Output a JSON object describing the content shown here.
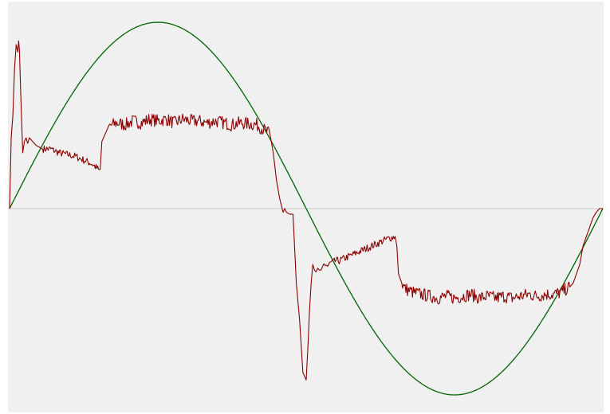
{
  "chart_data": {
    "type": "line",
    "title": "",
    "xlabel": "",
    "ylabel": "",
    "xlim": [
      0,
      360
    ],
    "ylim": [
      -1,
      1
    ],
    "grid": false,
    "zero_line": true,
    "colors": {
      "background": "#f0f0f0",
      "zero_line": "#cccccc",
      "sine_series": "#006400",
      "signal_series": "#8b0000"
    },
    "series": [
      {
        "key": "sine",
        "function": "sin",
        "amplitude": 1.0,
        "color": "#006400"
      },
      {
        "key": "signal",
        "color": "#8b0000",
        "x": [
          0,
          1,
          2,
          3,
          4,
          5,
          5.5,
          6,
          7,
          8,
          9,
          10,
          11,
          12,
          14,
          16,
          20,
          25,
          30,
          35,
          40,
          45,
          50,
          54,
          55,
          56,
          58,
          60,
          65,
          70,
          75,
          80,
          85,
          90,
          95,
          100,
          105,
          110,
          115,
          120,
          125,
          130,
          135,
          140,
          150,
          155,
          158,
          160,
          162,
          164,
          166,
          167,
          168,
          170,
          172,
          174,
          176,
          178,
          180,
          181,
          182,
          183,
          184,
          185,
          186,
          187,
          188,
          189,
          190,
          191,
          192,
          193,
          194,
          195,
          196,
          198,
          200,
          205,
          210,
          215,
          220,
          225,
          230,
          234,
          235,
          236,
          238,
          240,
          245,
          250,
          255,
          260,
          265,
          270,
          275,
          280,
          285,
          290,
          295,
          300,
          305,
          310,
          315,
          320,
          325,
          330,
          335,
          338,
          340,
          342,
          344,
          346,
          348,
          350,
          352,
          354,
          356,
          358,
          360
        ],
        "y": [
          0.0,
          0.38,
          0.5,
          0.75,
          0.88,
          0.84,
          0.9,
          0.85,
          0.55,
          0.3,
          0.36,
          0.38,
          0.35,
          0.38,
          0.36,
          0.34,
          0.32,
          0.32,
          0.3,
          0.29,
          0.28,
          0.26,
          0.24,
          0.21,
          0.21,
          0.36,
          0.4,
          0.44,
          0.46,
          0.45,
          0.47,
          0.46,
          0.48,
          0.47,
          0.48,
          0.46,
          0.48,
          0.47,
          0.47,
          0.46,
          0.47,
          0.46,
          0.45,
          0.46,
          0.45,
          0.42,
          0.4,
          0.3,
          0.15,
          0.05,
          -0.02,
          0.0,
          -0.02,
          -0.03,
          -0.03,
          -0.4,
          -0.6,
          -0.88,
          -0.92,
          -0.75,
          -0.55,
          -0.4,
          -0.3,
          -0.33,
          -0.34,
          -0.32,
          -0.33,
          -0.33,
          -0.31,
          -0.3,
          -0.3,
          -0.31,
          -0.3,
          -0.29,
          -0.29,
          -0.28,
          -0.28,
          -0.26,
          -0.24,
          -0.22,
          -0.2,
          -0.18,
          -0.16,
          -0.15,
          -0.2,
          -0.35,
          -0.4,
          -0.43,
          -0.45,
          -0.46,
          -0.47,
          -0.48,
          -0.47,
          -0.48,
          -0.47,
          -0.46,
          -0.48,
          -0.47,
          -0.48,
          -0.47,
          -0.48,
          -0.47,
          -0.46,
          -0.47,
          -0.46,
          -0.46,
          -0.45,
          -0.43,
          -0.42,
          -0.4,
          -0.35,
          -0.3,
          -0.2,
          -0.15,
          -0.1,
          -0.05,
          -0.02,
          0.0,
          0.0
        ]
      }
    ]
  }
}
